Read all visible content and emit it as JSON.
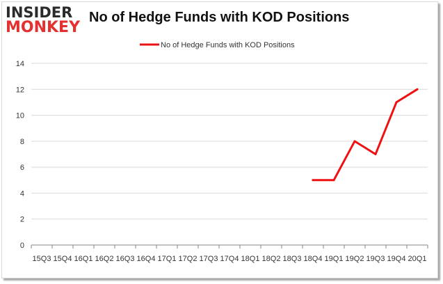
{
  "logo": {
    "line1": "INSIDER",
    "line2": "MONKEY"
  },
  "colors": {
    "series": "#ee1111",
    "grid": "#d9d9d9",
    "axis": "#868686",
    "text": "#333333"
  },
  "chart_data": {
    "type": "line",
    "title": "No of Hedge Funds with KOD Positions",
    "legend": {
      "position": "top-center"
    },
    "grid": true,
    "ylim": [
      0,
      14
    ],
    "yticks": [
      0,
      2,
      4,
      6,
      8,
      10,
      12,
      14
    ],
    "categories": [
      "15Q3",
      "15Q4",
      "16Q1",
      "16Q2",
      "16Q3",
      "16Q4",
      "17Q1",
      "17Q2",
      "17Q3",
      "17Q4",
      "18Q1",
      "18Q2",
      "18Q3",
      "18Q4",
      "19Q1",
      "19Q2",
      "19Q3",
      "19Q4",
      "20Q1"
    ],
    "series": [
      {
        "name": "No of Hedge Funds with KOD Positions",
        "values": [
          null,
          null,
          null,
          null,
          null,
          null,
          null,
          null,
          null,
          null,
          null,
          null,
          null,
          5,
          5,
          8,
          7,
          11,
          12
        ]
      }
    ]
  }
}
